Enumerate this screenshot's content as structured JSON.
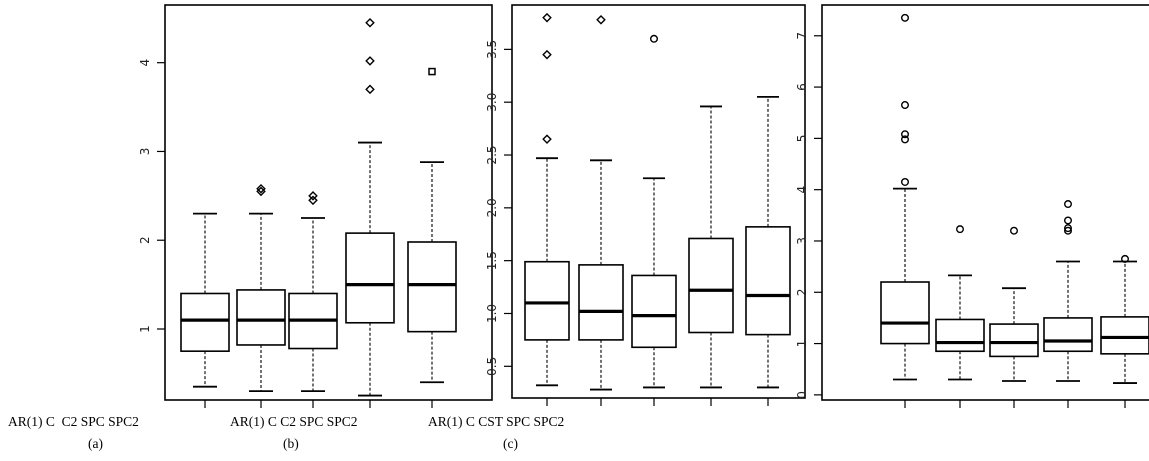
{
  "chart_data": [
    {
      "type": "boxplot",
      "panel": "(a)",
      "xlabel": "AR(1) C  C2 SPC SPC2",
      "ylim": [
        0.2,
        4.65
      ],
      "yticks": [
        1,
        2,
        3,
        4
      ],
      "boxes": [
        {
          "q1": 0.75,
          "median": 1.1,
          "q3": 1.4,
          "whisker_low": 0.35,
          "whisker_high": 2.3,
          "outliers": []
        },
        {
          "q1": 0.82,
          "median": 1.1,
          "q3": 1.44,
          "whisker_low": 0.3,
          "whisker_high": 2.3,
          "outliers": [
            2.55,
            2.58
          ]
        },
        {
          "q1": 0.78,
          "median": 1.1,
          "q3": 1.4,
          "whisker_low": 0.3,
          "whisker_high": 2.25,
          "outliers": [
            2.45,
            2.5
          ]
        },
        {
          "q1": 1.07,
          "median": 1.5,
          "q3": 2.08,
          "whisker_low": 0.25,
          "whisker_high": 3.1,
          "outliers": [
            3.7,
            4.02,
            4.45
          ]
        },
        {
          "q1": 0.97,
          "median": 1.5,
          "q3": 1.98,
          "whisker_low": 0.4,
          "whisker_high": 2.88,
          "outliers": [
            3.9
          ]
        }
      ]
    },
    {
      "type": "boxplot",
      "panel": "(b)",
      "xlabel": "AR(1) C C2 SPC SPC2",
      "ylim": [
        0.2,
        3.92
      ],
      "yticks": [
        0.5,
        1.0,
        1.5,
        2.0,
        2.5,
        3.0,
        3.5
      ],
      "ytick_labels": [
        "0.5",
        "1.0",
        "1.5",
        "2.0",
        "2.5",
        "3.0",
        "3.5"
      ],
      "boxes": [
        {
          "q1": 0.75,
          "median": 1.1,
          "q3": 1.49,
          "whisker_low": 0.32,
          "whisker_high": 2.47,
          "outliers": [
            2.65,
            3.45,
            3.8
          ]
        },
        {
          "q1": 0.75,
          "median": 1.02,
          "q3": 1.46,
          "whisker_low": 0.28,
          "whisker_high": 2.45,
          "outliers": [
            3.78
          ]
        },
        {
          "q1": 0.68,
          "median": 0.98,
          "q3": 1.36,
          "whisker_low": 0.3,
          "whisker_high": 2.28,
          "outliers": [
            3.6
          ]
        },
        {
          "q1": 0.82,
          "median": 1.22,
          "q3": 1.71,
          "whisker_low": 0.3,
          "whisker_high": 2.96,
          "outliers": []
        },
        {
          "q1": 0.8,
          "median": 1.17,
          "q3": 1.82,
          "whisker_low": 0.3,
          "whisker_high": 3.05,
          "outliers": []
        }
      ]
    },
    {
      "type": "boxplot",
      "panel": "(c)",
      "xlabel": "AR(1) C CST SPC SPC2",
      "ylim": [
        -0.1,
        7.6
      ],
      "yticks": [
        0,
        1,
        2,
        3,
        4,
        5,
        6,
        7
      ],
      "boxes": [
        {
          "q1": 1.0,
          "median": 1.4,
          "q3": 2.2,
          "whisker_low": 0.3,
          "whisker_high": 4.02,
          "outliers": [
            4.15,
            4.98,
            5.08,
            5.65,
            7.35
          ]
        },
        {
          "q1": 0.85,
          "median": 1.02,
          "q3": 1.47,
          "whisker_low": 0.3,
          "whisker_high": 2.33,
          "outliers": [
            3.23
          ]
        },
        {
          "q1": 0.75,
          "median": 1.02,
          "q3": 1.38,
          "whisker_low": 0.27,
          "whisker_high": 2.08,
          "outliers": [
            3.2
          ]
        },
        {
          "q1": 0.85,
          "median": 1.05,
          "q3": 1.5,
          "whisker_low": 0.27,
          "whisker_high": 2.6,
          "outliers": [
            3.2,
            3.25,
            3.4,
            3.72
          ]
        },
        {
          "q1": 0.8,
          "median": 1.12,
          "q3": 1.52,
          "whisker_low": 0.23,
          "whisker_high": 2.6,
          "outliers": [
            2.65
          ]
        }
      ]
    }
  ]
}
